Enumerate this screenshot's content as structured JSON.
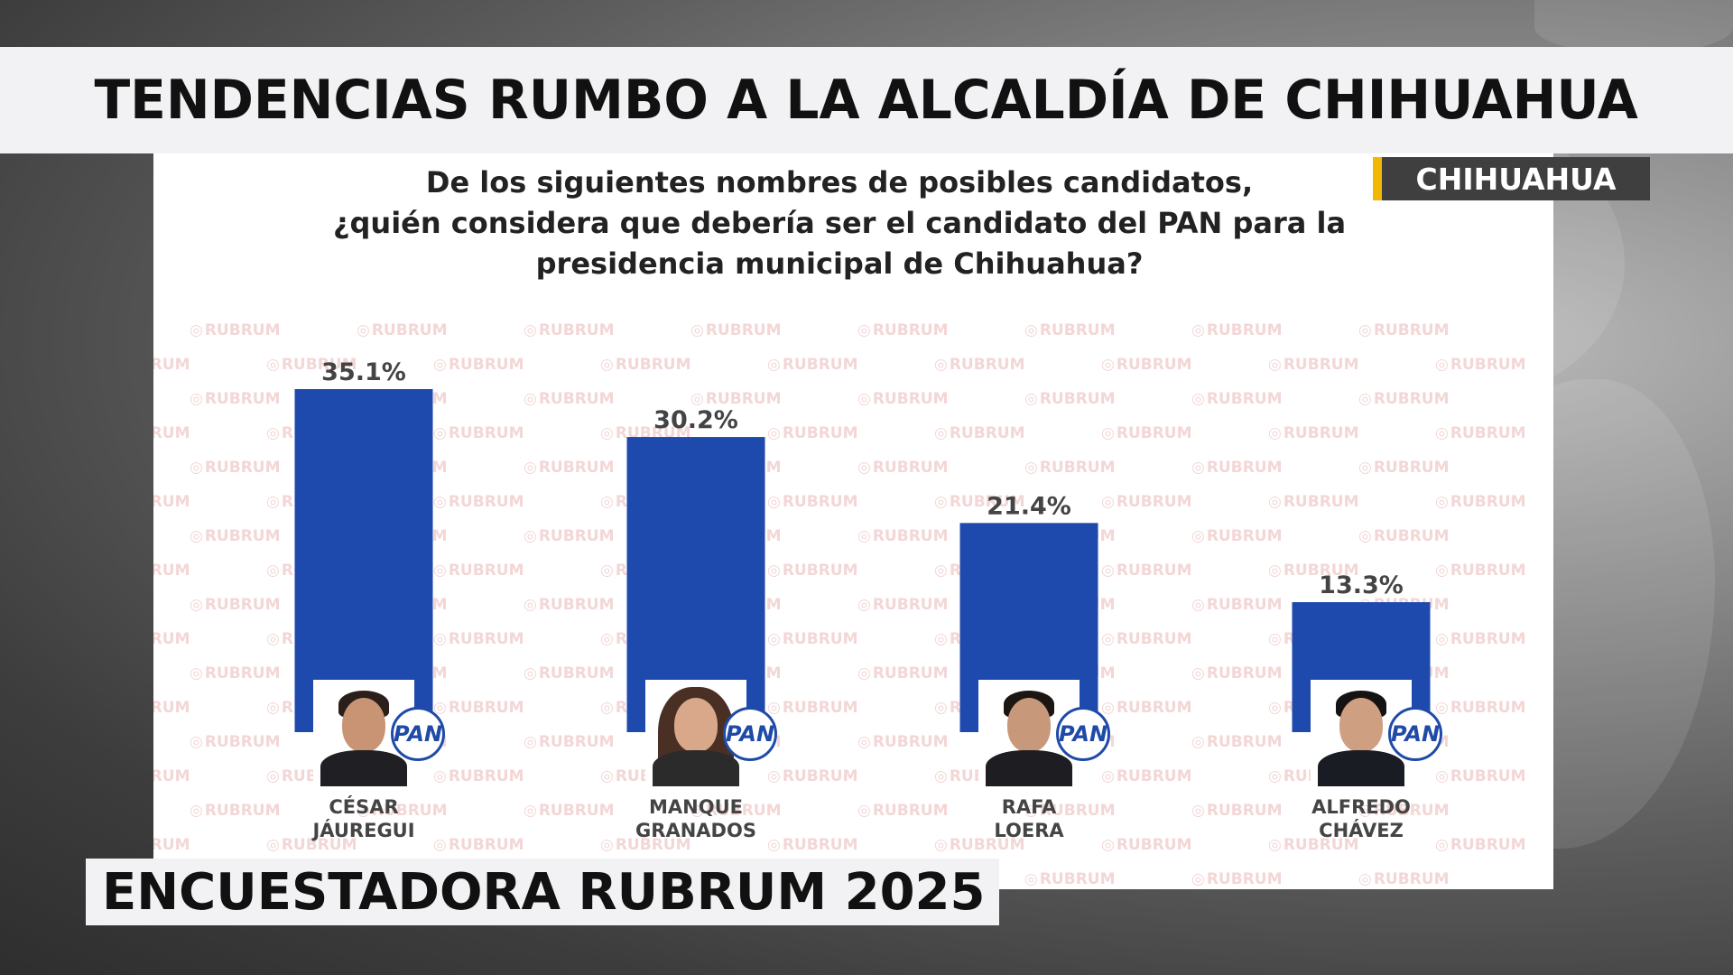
{
  "header": {
    "title": "TENDENCIAS RUMBO A LA ALCALDÍA DE CHIHUAHUA"
  },
  "tag": {
    "label": "CHIHUAHUA",
    "accent_color": "#f2b705"
  },
  "footer": {
    "title": "ENCUESTADORA RUBRUM 2025"
  },
  "watermark": {
    "text": "RUBRUM"
  },
  "question": {
    "lines": [
      "De los siguientes nombres de posibles candidatos,",
      "¿quién considera que debería ser el candidato del PAN para la",
      "presidencia municipal de Chihuahua?"
    ]
  },
  "party_logo": {
    "text": "PAN"
  },
  "chart_data": {
    "type": "bar",
    "title": "De los siguientes nombres de posibles candidatos, ¿quién considera que debería ser el candidato del PAN para la presidencia municipal de Chihuahua?",
    "categories": [
      "CÉSAR JÁUREGUI",
      "MANQUE GRANADOS",
      "RAFA LOERA",
      "ALFREDO CHÁVEZ"
    ],
    "category_lines": [
      [
        "CÉSAR",
        "JÁUREGUI"
      ],
      [
        "MANQUE",
        "GRANADOS"
      ],
      [
        "RAFA",
        "LOERA"
      ],
      [
        "ALFREDO",
        "CHÁVEZ"
      ]
    ],
    "values": [
      35.1,
      30.2,
      21.4,
      13.3
    ],
    "value_labels": [
      "35.1%",
      "30.2%",
      "21.4%",
      "13.3%"
    ],
    "unit": "%",
    "ylim": [
      0,
      35.1
    ],
    "bar_color": "#1f4aad",
    "label_color": "#444444",
    "grid": false,
    "legend": "none"
  }
}
